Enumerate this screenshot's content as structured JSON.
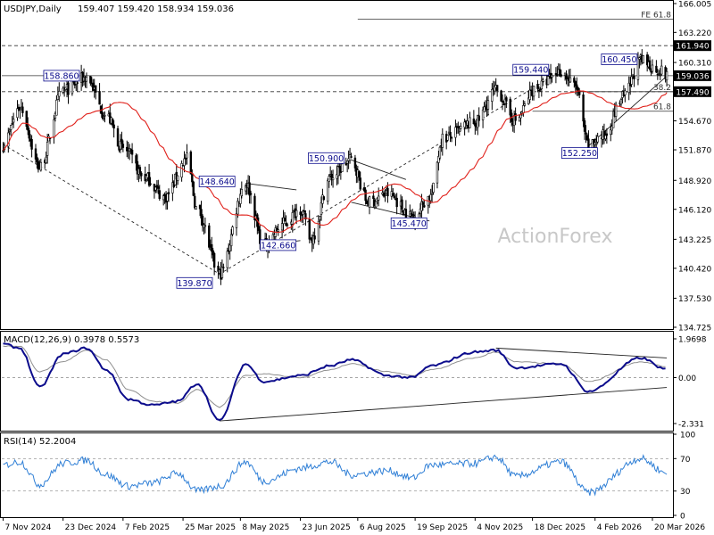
{
  "symbol_info": {
    "header": "USDJPY,Daily",
    "ohlc": "159.407 159.420 158.934 159.036"
  },
  "watermark": "ActionForex",
  "colors": {
    "bg": "#ffffff",
    "candle": "#000000",
    "ma": "#e0201a",
    "macd_main": "#0b0b8c",
    "macd_signal": "#8f8f8f",
    "rsi": "#2f7fd6",
    "label_border": "#0b0b8c",
    "label_text": "#0b0b8c",
    "tag_bg": "#000000",
    "tag_text": "#ffffff",
    "watermark": "#c8c8c8"
  },
  "chart_data": [
    {
      "type": "candlestick",
      "panel": "price",
      "title": "USDJPY,Daily 159.407 159.420 158.934 159.036",
      "ylim": [
        134.725,
        166.005
      ],
      "y_ticks": [
        "166.005",
        "163.220",
        "160.310",
        "157.490",
        "154.670",
        "151.870",
        "148.920",
        "146.120",
        "143.225",
        "140.420",
        "137.530",
        "134.725"
      ],
      "right_tags": [
        {
          "label": "161.940",
          "value": 161.94
        },
        {
          "label": "159.036",
          "value": 159.036
        },
        {
          "label": "157.490",
          "value": 157.49
        }
      ],
      "x_ticks": [
        "7 Nov 2024",
        "23 Dec 2024",
        "7 Feb 2025",
        "25 Mar 2025",
        "8 May 2025",
        "23 Jun 2025",
        "6 Aug 2025",
        "19 Sep 2025",
        "4 Nov 2025",
        "18 Dec 2025",
        "4 Feb 2026",
        "20 Mar 2026"
      ],
      "anchors": [
        {
          "label": "7 Nov 2024",
          "price": 152.4
        },
        {
          "label": "20 Nov 2024",
          "price": 156.0
        },
        {
          "label": "5 Dec 2024",
          "price": 150.2
        },
        {
          "label": "23 Dec 2024",
          "price": 157.6
        },
        {
          "label": "10 Jan 2025",
          "price": 158.86
        },
        {
          "label": "25 Jan 2025",
          "price": 155.2
        },
        {
          "label": "7 Feb 2025",
          "price": 152.0
        },
        {
          "label": "24 Feb 2025",
          "price": 149.2
        },
        {
          "label": "11 Mar 2025",
          "price": 147.3
        },
        {
          "label": "28 Mar 2025",
          "price": 151.0
        },
        {
          "label": "5 Apr 2025",
          "price": 146.0
        },
        {
          "label": "22 Apr 2025",
          "price": 139.87
        },
        {
          "label": "12 May 2025",
          "price": 148.64
        },
        {
          "label": "26 May 2025",
          "price": 142.66
        },
        {
          "label": "11 Jun 2025",
          "price": 144.8
        },
        {
          "label": "23 Jun 2025",
          "price": 146.2
        },
        {
          "label": "1 Jul 2025",
          "price": 143.2
        },
        {
          "label": "16 Jul 2025",
          "price": 149.2
        },
        {
          "label": "1 Aug 2025",
          "price": 150.9
        },
        {
          "label": "14 Aug 2025",
          "price": 146.8
        },
        {
          "label": "29 Aug 2025",
          "price": 147.6
        },
        {
          "label": "17 Sep 2025",
          "price": 145.47
        },
        {
          "label": "1 Oct 2025",
          "price": 147.4
        },
        {
          "label": "10 Oct 2025",
          "price": 153.0
        },
        {
          "label": "4 Nov 2025",
          "price": 154.5
        },
        {
          "label": "20 Nov 2025",
          "price": 157.6
        },
        {
          "label": "5 Dec 2025",
          "price": 154.7
        },
        {
          "label": "20 Dec 2025",
          "price": 157.8
        },
        {
          "label": "9 Jan 2026",
          "price": 159.44
        },
        {
          "label": "20 Jan 2026",
          "price": 158.0
        },
        {
          "label": "30 Jan 2026",
          "price": 152.25
        },
        {
          "label": "10 Feb 2026",
          "price": 153.2
        },
        {
          "label": "26 Feb 2026",
          "price": 157.0
        },
        {
          "label": "11 Mar 2026",
          "price": 160.45
        },
        {
          "label": "25 Mar 2026",
          "price": 159.6
        },
        {
          "label": "31 Mar 2026",
          "price": 159.036
        }
      ],
      "indicator": "moving average (red)",
      "annotations": [
        {
          "label": "158.860",
          "date": "10 Jan 2025",
          "price": 158.86
        },
        {
          "label": "148.640",
          "date": "12 May 2025",
          "price": 148.64
        },
        {
          "label": "139.870",
          "date": "22 Apr 2025",
          "price": 139.87
        },
        {
          "label": "142.660",
          "date": "26 May 2025",
          "price": 142.66
        },
        {
          "label": "150.900",
          "date": "1 Aug 2025",
          "price": 150.9
        },
        {
          "label": "145.470",
          "date": "17 Sep 2025",
          "price": 145.47
        },
        {
          "label": "159.440",
          "date": "9 Jan 2026",
          "price": 159.44
        },
        {
          "label": "152.250",
          "date": "30 Jan 2026",
          "price": 152.25
        },
        {
          "label": "160.450",
          "date": "11 Mar 2026",
          "price": 160.45
        }
      ],
      "level_lines": [
        {
          "label": "FE 61.8",
          "price": 164.5,
          "style": "solid"
        },
        {
          "label": "",
          "price": 161.94,
          "style": "dashed"
        },
        {
          "label": "",
          "price": 159.036,
          "style": "solid"
        },
        {
          "label": "",
          "price": 157.49,
          "style": "dashed"
        },
        {
          "label": "38.2",
          "price": 157.49,
          "style": "solid"
        },
        {
          "label": "61.8",
          "price": 155.6,
          "style": "solid"
        }
      ],
      "trendlines": [
        {
          "from": {
            "date": "7 Nov 2024",
            "price": 152.4
          },
          "to": {
            "date": "22 Apr 2025",
            "price": 139.87
          },
          "style": "dashed"
        },
        {
          "from": {
            "date": "22 Apr 2025",
            "price": 139.87
          },
          "to": {
            "date": "9 Jan 2026",
            "price": 159.44
          },
          "style": "dashed"
        },
        {
          "from": {
            "date": "12 May 2025",
            "price": 148.64
          },
          "to": {
            "date": "20 Jun 2025",
            "price": 148.0
          },
          "style": "solid"
        },
        {
          "from": {
            "date": "26 May 2025",
            "price": 142.66
          },
          "to": {
            "date": "23 Jun 2025",
            "price": 143.1
          },
          "style": "solid"
        },
        {
          "from": {
            "date": "1 Aug 2025",
            "price": 150.9
          },
          "to": {
            "date": "12 Sep 2025",
            "price": 149.0
          },
          "style": "solid"
        },
        {
          "from": {
            "date": "1 Aug 2025",
            "price": 146.8
          },
          "to": {
            "date": "30 Sep 2025",
            "price": 145.0
          },
          "style": "solid"
        },
        {
          "from": {
            "date": "30 Jan 2026",
            "price": 152.25
          },
          "to": {
            "date": "31 Mar 2026",
            "price": 159.0
          },
          "style": "solid"
        }
      ]
    },
    {
      "type": "line",
      "panel": "macd",
      "title": "MACD(12,26,9) 0.3978 0.5573",
      "ylim": [
        -2.331,
        1.9698
      ],
      "y_ticks": [
        "1.9698",
        "0.00",
        "-2.331"
      ],
      "series": [
        {
          "name": "main",
          "anchors": [
            {
              "date": "7 Nov 2024",
              "value": 1.7
            },
            {
              "date": "20 Nov 2024",
              "value": 1.5
            },
            {
              "date": "5 Dec 2024",
              "value": -0.5
            },
            {
              "date": "23 Dec 2024",
              "value": 1.2
            },
            {
              "date": "10 Jan 2025",
              "value": 1.5
            },
            {
              "date": "25 Jan 2025",
              "value": 0.4
            },
            {
              "date": "11 Feb 2025",
              "value": -1.1
            },
            {
              "date": "2 Mar 2025",
              "value": -1.4
            },
            {
              "date": "21 Mar 2025",
              "value": -1.2
            },
            {
              "date": "5 Apr 2025",
              "value": -0.3
            },
            {
              "date": "22 Apr 2025",
              "value": -2.2
            },
            {
              "date": "12 May 2025",
              "value": 0.7
            },
            {
              "date": "26 May 2025",
              "value": -0.2
            },
            {
              "date": "23 Jun 2025",
              "value": 0.1
            },
            {
              "date": "16 Jul 2025",
              "value": 0.6
            },
            {
              "date": "1 Aug 2025",
              "value": 0.9
            },
            {
              "date": "29 Aug 2025",
              "value": 0.1
            },
            {
              "date": "17 Sep 2025",
              "value": 0.0
            },
            {
              "date": "1 Oct 2025",
              "value": 0.6
            },
            {
              "date": "4 Nov 2025",
              "value": 1.3
            },
            {
              "date": "20 Nov 2025",
              "value": 1.4
            },
            {
              "date": "5 Dec 2025",
              "value": 0.5
            },
            {
              "date": "9 Jan 2026",
              "value": 0.7
            },
            {
              "date": "30 Jan 2026",
              "value": -0.7
            },
            {
              "date": "11 Mar 2026",
              "value": 1.0
            },
            {
              "date": "31 Mar 2026",
              "value": 0.4
            }
          ]
        },
        {
          "name": "signal",
          "anchors": [
            {
              "date": "7 Nov 2024",
              "value": 1.6
            },
            {
              "date": "20 Nov 2024",
              "value": 1.6
            },
            {
              "date": "5 Dec 2024",
              "value": 0.3
            },
            {
              "date": "23 Dec 2024",
              "value": 0.8
            },
            {
              "date": "10 Jan 2025",
              "value": 1.4
            },
            {
              "date": "25 Jan 2025",
              "value": 0.9
            },
            {
              "date": "11 Feb 2025",
              "value": -0.6
            },
            {
              "date": "2 Mar 2025",
              "value": -1.2
            },
            {
              "date": "21 Mar 2025",
              "value": -1.3
            },
            {
              "date": "5 Apr 2025",
              "value": -0.6
            },
            {
              "date": "22 Apr 2025",
              "value": -1.5
            },
            {
              "date": "12 May 2025",
              "value": 0.1
            },
            {
              "date": "26 May 2025",
              "value": 0.2
            },
            {
              "date": "23 Jun 2025",
              "value": 0.0
            },
            {
              "date": "16 Jul 2025",
              "value": 0.4
            },
            {
              "date": "1 Aug 2025",
              "value": 0.7
            },
            {
              "date": "29 Aug 2025",
              "value": 0.3
            },
            {
              "date": "17 Sep 2025",
              "value": 0.1
            },
            {
              "date": "1 Oct 2025",
              "value": 0.4
            },
            {
              "date": "4 Nov 2025",
              "value": 1.0
            },
            {
              "date": "20 Nov 2025",
              "value": 1.3
            },
            {
              "date": "5 Dec 2025",
              "value": 0.8
            },
            {
              "date": "9 Jan 2026",
              "value": 0.7
            },
            {
              "date": "30 Jan 2026",
              "value": -0.2
            },
            {
              "date": "11 Mar 2026",
              "value": 0.8
            },
            {
              "date": "31 Mar 2026",
              "value": 0.55
            }
          ]
        }
      ],
      "trendlines": [
        {
          "from": {
            "date": "22 Apr 2025",
            "value": -2.2
          },
          "to": {
            "date": "31 Mar 2026",
            "value": -0.5
          }
        },
        {
          "from": {
            "date": "20 Nov 2025",
            "value": 1.5
          },
          "to": {
            "date": "31 Mar 2026",
            "value": 1.0
          }
        }
      ]
    },
    {
      "type": "line",
      "panel": "rsi",
      "title": "RSI(14) 52.2004",
      "ylim": [
        0,
        100
      ],
      "y_ticks": [
        "100",
        "70",
        "30",
        "0"
      ],
      "series": [
        {
          "name": "RSI",
          "anchors": [
            {
              "date": "7 Nov 2024",
              "value": 62
            },
            {
              "date": "20 Nov 2024",
              "value": 66
            },
            {
              "date": "5 Dec 2024",
              "value": 38
            },
            {
              "date": "23 Dec 2024",
              "value": 64
            },
            {
              "date": "10 Jan 2025",
              "value": 68
            },
            {
              "date": "25 Jan 2025",
              "value": 50
            },
            {
              "date": "11 Feb 2025",
              "value": 36
            },
            {
              "date": "2 Mar 2025",
              "value": 40
            },
            {
              "date": "21 Mar 2025",
              "value": 52
            },
            {
              "date": "5 Apr 2025",
              "value": 30
            },
            {
              "date": "22 Apr 2025",
              "value": 36
            },
            {
              "date": "12 May 2025",
              "value": 66
            },
            {
              "date": "26 May 2025",
              "value": 42
            },
            {
              "date": "23 Jun 2025",
              "value": 58
            },
            {
              "date": "16 Jul 2025",
              "value": 66
            },
            {
              "date": "1 Aug 2025",
              "value": 50
            },
            {
              "date": "29 Aug 2025",
              "value": 55
            },
            {
              "date": "17 Sep 2025",
              "value": 46
            },
            {
              "date": "1 Oct 2025",
              "value": 62
            },
            {
              "date": "4 Nov 2025",
              "value": 64
            },
            {
              "date": "20 Nov 2025",
              "value": 72
            },
            {
              "date": "5 Dec 2025",
              "value": 48
            },
            {
              "date": "9 Jan 2026",
              "value": 66
            },
            {
              "date": "30 Jan 2026",
              "value": 28
            },
            {
              "date": "11 Mar 2026",
              "value": 70
            },
            {
              "date": "31 Mar 2026",
              "value": 52
            }
          ]
        }
      ]
    }
  ]
}
